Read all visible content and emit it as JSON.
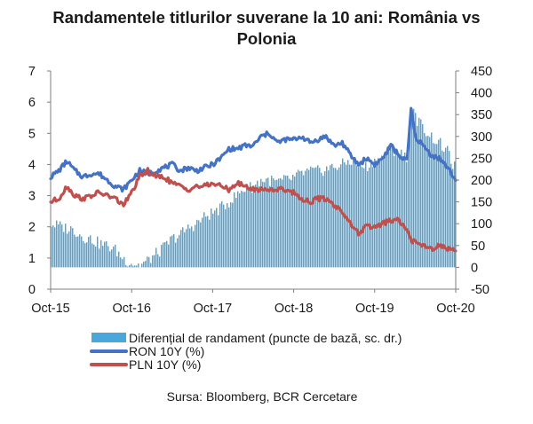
{
  "title": {
    "line1": "Randamentele titlurilor suverane la 10 ani: România vs",
    "line2": "Polonia"
  },
  "source": "Sursa: Bloomberg, BCR Cercetare",
  "colors": {
    "spread": "#4aa7dc",
    "ron": "#4472c4",
    "pln": "#c0504d",
    "axis": "#7f7f7f"
  },
  "chart_data": {
    "type": "bar+line",
    "title": "Randamentele titlurilor suverane la 10 ani: România vs Polonia",
    "x_ticks": [
      "Oct-15",
      "Oct-16",
      "Oct-17",
      "Oct-18",
      "Oct-19",
      "Oct-20"
    ],
    "x_range": [
      2015.75,
      2020.75
    ],
    "left_axis": {
      "label": "%",
      "range": [
        0,
        7
      ],
      "ticks": [
        "0",
        "1",
        "2",
        "3",
        "4",
        "5",
        "6",
        "7"
      ]
    },
    "right_axis": {
      "label": "puncte de bază",
      "range": [
        -50,
        450
      ],
      "ticks": [
        "-50",
        "0",
        "50",
        "100",
        "150",
        "200",
        "250",
        "300",
        "350",
        "400",
        "450"
      ]
    },
    "legend": [
      {
        "key": "spread",
        "label": "Diferențial de randament (puncte de bază, sc. dr.)",
        "kind": "bar"
      },
      {
        "key": "ron",
        "label": "RON 10Y (%)",
        "kind": "line"
      },
      {
        "key": "pln",
        "label": "PLN 10Y (%)",
        "kind": "line"
      }
    ],
    "series": [
      {
        "name": "RON 10Y (%)",
        "axis": "left",
        "type": "line",
        "points": [
          [
            2015.75,
            3.6
          ],
          [
            2015.85,
            3.8
          ],
          [
            2015.95,
            4.1
          ],
          [
            2016.05,
            3.8
          ],
          [
            2016.15,
            3.6
          ],
          [
            2016.25,
            3.7
          ],
          [
            2016.35,
            3.7
          ],
          [
            2016.45,
            3.5
          ],
          [
            2016.55,
            3.3
          ],
          [
            2016.65,
            3.2
          ],
          [
            2016.75,
            3.5
          ],
          [
            2016.85,
            3.8
          ],
          [
            2016.95,
            3.7
          ],
          [
            2017.05,
            3.8
          ],
          [
            2017.15,
            3.9
          ],
          [
            2017.25,
            4.0
          ],
          [
            2017.35,
            3.8
          ],
          [
            2017.45,
            3.9
          ],
          [
            2017.55,
            3.8
          ],
          [
            2017.65,
            3.9
          ],
          [
            2017.75,
            4.0
          ],
          [
            2017.85,
            4.2
          ],
          [
            2017.95,
            4.5
          ],
          [
            2018.05,
            4.5
          ],
          [
            2018.15,
            4.6
          ],
          [
            2018.25,
            4.6
          ],
          [
            2018.35,
            4.9
          ],
          [
            2018.45,
            5.0
          ],
          [
            2018.55,
            4.7
          ],
          [
            2018.65,
            4.8
          ],
          [
            2018.75,
            4.8
          ],
          [
            2018.85,
            4.9
          ],
          [
            2018.95,
            4.7
          ],
          [
            2019.05,
            4.8
          ],
          [
            2019.15,
            4.9
          ],
          [
            2019.25,
            4.6
          ],
          [
            2019.35,
            4.7
          ],
          [
            2019.45,
            4.3
          ],
          [
            2019.55,
            4.0
          ],
          [
            2019.65,
            4.2
          ],
          [
            2019.75,
            4.0
          ],
          [
            2019.85,
            4.2
          ],
          [
            2019.95,
            4.6
          ],
          [
            2020.05,
            4.3
          ],
          [
            2020.15,
            4.1
          ],
          [
            2020.2,
            5.8
          ],
          [
            2020.25,
            4.9
          ],
          [
            2020.35,
            4.6
          ],
          [
            2020.45,
            4.3
          ],
          [
            2020.55,
            4.2
          ],
          [
            2020.65,
            3.9
          ],
          [
            2020.75,
            3.5
          ]
        ]
      },
      {
        "name": "PLN 10Y (%)",
        "axis": "left",
        "type": "line",
        "points": [
          [
            2015.75,
            2.8
          ],
          [
            2015.85,
            2.9
          ],
          [
            2015.95,
            3.3
          ],
          [
            2016.05,
            3.0
          ],
          [
            2016.15,
            2.9
          ],
          [
            2016.25,
            3.0
          ],
          [
            2016.35,
            3.1
          ],
          [
            2016.45,
            3.0
          ],
          [
            2016.55,
            2.9
          ],
          [
            2016.65,
            2.7
          ],
          [
            2016.75,
            3.1
          ],
          [
            2016.85,
            3.6
          ],
          [
            2016.95,
            3.8
          ],
          [
            2017.05,
            3.6
          ],
          [
            2017.15,
            3.6
          ],
          [
            2017.25,
            3.4
          ],
          [
            2017.35,
            3.3
          ],
          [
            2017.45,
            3.2
          ],
          [
            2017.55,
            3.3
          ],
          [
            2017.65,
            3.3
          ],
          [
            2017.75,
            3.4
          ],
          [
            2017.85,
            3.3
          ],
          [
            2017.95,
            3.2
          ],
          [
            2018.05,
            3.4
          ],
          [
            2018.15,
            3.3
          ],
          [
            2018.25,
            3.2
          ],
          [
            2018.35,
            3.2
          ],
          [
            2018.45,
            3.2
          ],
          [
            2018.55,
            3.2
          ],
          [
            2018.65,
            3.2
          ],
          [
            2018.75,
            3.1
          ],
          [
            2018.85,
            2.9
          ],
          [
            2018.95,
            2.8
          ],
          [
            2019.05,
            2.9
          ],
          [
            2019.15,
            2.9
          ],
          [
            2019.25,
            2.7
          ],
          [
            2019.35,
            2.5
          ],
          [
            2019.45,
            2.1
          ],
          [
            2019.55,
            1.8
          ],
          [
            2019.65,
            2.0
          ],
          [
            2019.75,
            2.0
          ],
          [
            2019.85,
            2.1
          ],
          [
            2019.95,
            2.2
          ],
          [
            2020.05,
            2.2
          ],
          [
            2020.15,
            1.9
          ],
          [
            2020.2,
            1.5
          ],
          [
            2020.25,
            1.6
          ],
          [
            2020.35,
            1.4
          ],
          [
            2020.45,
            1.3
          ],
          [
            2020.55,
            1.4
          ],
          [
            2020.65,
            1.3
          ],
          [
            2020.75,
            1.3
          ]
        ]
      },
      {
        "name": "Diferențial de randament (puncte de bază, sc. dr.)",
        "axis": "right",
        "type": "bar",
        "points": [
          [
            2015.75,
            100
          ],
          [
            2015.85,
            95
          ],
          [
            2015.95,
            90
          ],
          [
            2016.05,
            85
          ],
          [
            2016.15,
            70
          ],
          [
            2016.25,
            65
          ],
          [
            2016.35,
            55
          ],
          [
            2016.45,
            50
          ],
          [
            2016.55,
            40
          ],
          [
            2016.65,
            20
          ],
          [
            2016.75,
            10
          ],
          [
            2016.85,
            5
          ],
          [
            2016.95,
            15
          ],
          [
            2017.05,
            30
          ],
          [
            2017.15,
            45
          ],
          [
            2017.25,
            65
          ],
          [
            2017.35,
            75
          ],
          [
            2017.45,
            90
          ],
          [
            2017.55,
            100
          ],
          [
            2017.65,
            115
          ],
          [
            2017.75,
            125
          ],
          [
            2017.85,
            135
          ],
          [
            2017.95,
            150
          ],
          [
            2018.05,
            165
          ],
          [
            2018.15,
            180
          ],
          [
            2018.25,
            185
          ],
          [
            2018.35,
            200
          ],
          [
            2018.45,
            200
          ],
          [
            2018.55,
            195
          ],
          [
            2018.65,
            200
          ],
          [
            2018.75,
            205
          ],
          [
            2018.85,
            215
          ],
          [
            2018.95,
            220
          ],
          [
            2019.05,
            220
          ],
          [
            2019.15,
            225
          ],
          [
            2019.25,
            230
          ],
          [
            2019.35,
            235
          ],
          [
            2019.45,
            245
          ],
          [
            2019.55,
            235
          ],
          [
            2019.65,
            230
          ],
          [
            2019.75,
            245
          ],
          [
            2019.85,
            250
          ],
          [
            2019.95,
            275
          ],
          [
            2020.05,
            260
          ],
          [
            2020.15,
            255
          ],
          [
            2020.2,
            370
          ],
          [
            2020.25,
            345
          ],
          [
            2020.35,
            320
          ],
          [
            2020.45,
            300
          ],
          [
            2020.55,
            285
          ],
          [
            2020.65,
            265
          ],
          [
            2020.75,
            225
          ]
        ]
      }
    ]
  }
}
